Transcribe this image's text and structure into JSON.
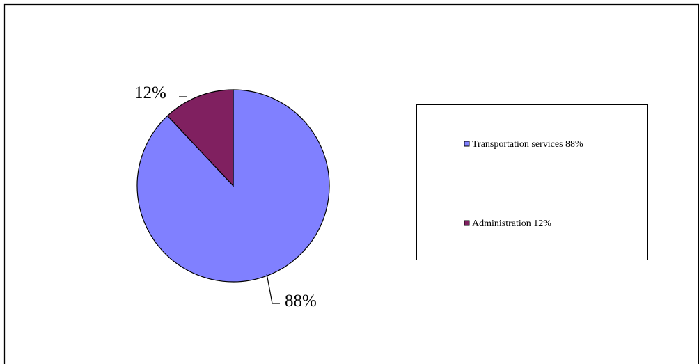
{
  "chart_data": {
    "type": "pie",
    "title": "",
    "slices": [
      {
        "label": "Transportation services",
        "value": 88,
        "color": "#8080ff",
        "data_label": "88%",
        "legend_text": "Transportation services 88%"
      },
      {
        "label": "Administration",
        "value": 12,
        "color": "#802060",
        "data_label": "12%",
        "legend_text": "Administration 12%"
      }
    ],
    "legend_position": "right"
  }
}
